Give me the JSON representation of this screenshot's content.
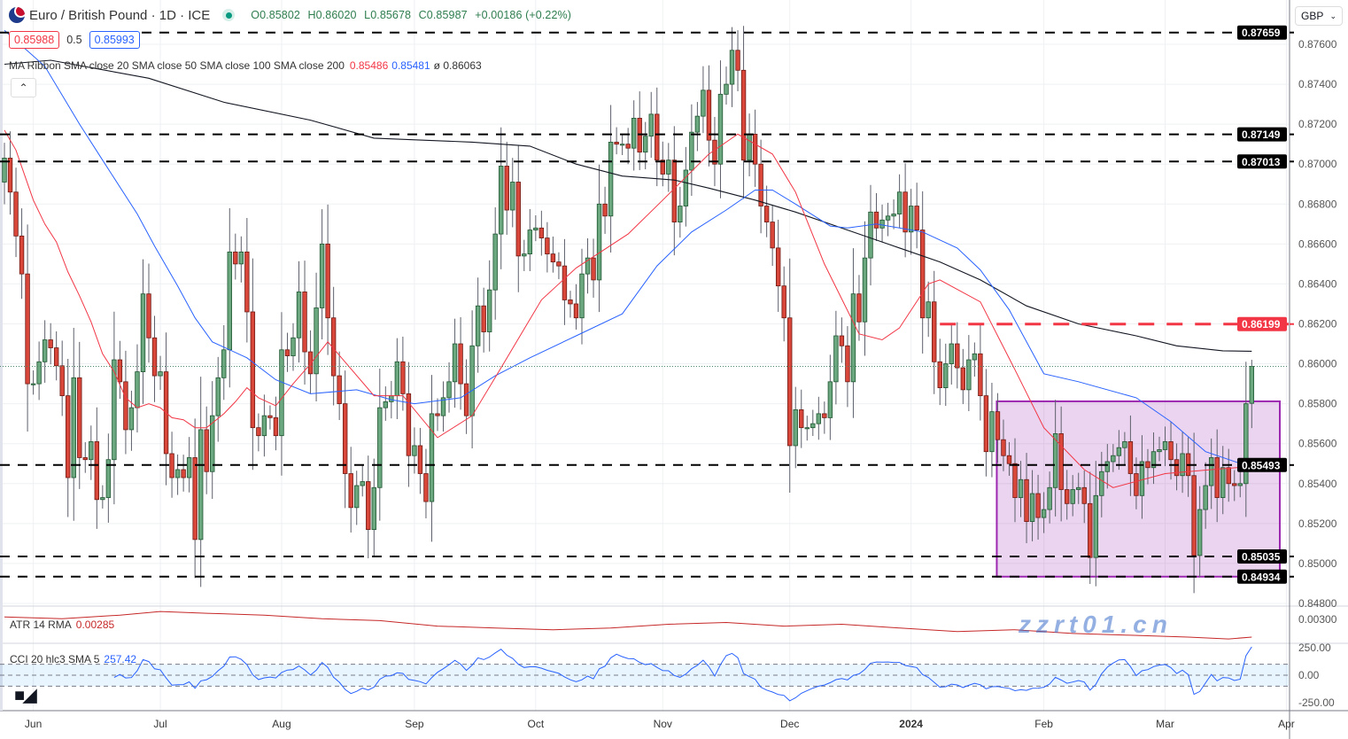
{
  "header": {
    "title": "Euro / British Pound · 1D · ICE",
    "open": "O0.85802",
    "high": "H0.86020",
    "low": "L0.85678",
    "close": "C0.85987",
    "change": "+0.00186 (+0.22%)",
    "bid": "0.85988",
    "spread": "0.5",
    "ask": "0.85993",
    "collapse_icon": "chevron-up-icon"
  },
  "ma_ribbon": {
    "label": "MA Ribbon SMA close 20 SMA close 50 SMA close 100 SMA close 200",
    "v20": "0.85486",
    "v50": "0.85481",
    "v200": "ø 0.86063"
  },
  "atr": {
    "label": "ATR 14 RMA",
    "value": "0.00285"
  },
  "cci": {
    "label": "CCI 20 hlc3 SMA 5",
    "value": "257.42"
  },
  "currency_select": {
    "value": "GBP"
  },
  "logo_text": "TV",
  "watermark": "zzrt01.cn",
  "colors": {
    "up": "#6ba77f",
    "up_border": "#1e5631",
    "down": "#d9473b",
    "down_border": "#6e1a14",
    "sma20": "#f23645",
    "sma50": "#2962ff",
    "sma200": "#131722",
    "box": "#9c27b0",
    "resistance": "#f23645",
    "cci": "#2962ff",
    "atr": "#c62828"
  },
  "chart_data": {
    "type": "candlestick",
    "symbol": "EUR/GBP",
    "ylim": [
      0.848,
      0.8775
    ],
    "y_ticks": [
      "0.87600",
      "0.87400",
      "0.87200",
      "0.87000",
      "0.86800",
      "0.86600",
      "0.86400",
      "0.86200",
      "0.86000",
      "0.85800",
      "0.85600",
      "0.85400",
      "0.85200",
      "0.85000",
      "0.84800"
    ],
    "x_labels": [
      {
        "label": "Jun",
        "index": 5
      },
      {
        "label": "Jul",
        "index": 27
      },
      {
        "label": "Aug",
        "index": 48
      },
      {
        "label": "Sep",
        "index": 71
      },
      {
        "label": "Oct",
        "index": 92
      },
      {
        "label": "Nov",
        "index": 114
      },
      {
        "label": "Dec",
        "index": 136
      },
      {
        "label": "2024",
        "index": 157,
        "bold": true
      },
      {
        "label": "Feb",
        "index": 180
      },
      {
        "label": "Mar",
        "index": 201
      },
      {
        "label": "Apr",
        "index": 222
      }
    ],
    "first_open": 0.8691,
    "last_candle": {
      "open": 0.85802,
      "high": 0.8602,
      "low": 0.85678,
      "close": 0.85987
    },
    "closes": [
      0.8703,
      0.8686,
      0.8664,
      0.8645,
      0.859,
      0.859,
      0.8601,
      0.8612,
      0.8608,
      0.8599,
      0.8584,
      0.8543,
      0.8593,
      0.8553,
      0.8552,
      0.8561,
      0.8532,
      0.8533,
      0.8552,
      0.8602,
      0.8591,
      0.8567,
      0.8578,
      0.8596,
      0.8635,
      0.8613,
      0.8594,
      0.8596,
      0.8555,
      0.8543,
      0.8547,
      0.8543,
      0.8553,
      0.8512,
      0.8567,
      0.8546,
      0.8574,
      0.8593,
      0.8607,
      0.8656,
      0.865,
      0.8656,
      0.8626,
      0.8568,
      0.8564,
      0.8574,
      0.8573,
      0.8564,
      0.8607,
      0.8604,
      0.8613,
      0.8636,
      0.8606,
      0.8595,
      0.8628,
      0.866,
      0.8623,
      0.8594,
      0.858,
      0.8545,
      0.8528,
      0.8539,
      0.8541,
      0.8517,
      0.8538,
      0.8578,
      0.8581,
      0.8584,
      0.8601,
      0.8585,
      0.8554,
      0.8559,
      0.8545,
      0.8531,
      0.8575,
      0.8574,
      0.8583,
      0.8591,
      0.861,
      0.859,
      0.8574,
      0.8609,
      0.8629,
      0.8616,
      0.8637,
      0.8665,
      0.8699,
      0.8677,
      0.8691,
      0.8654,
      0.8655,
      0.8667,
      0.8668,
      0.8663,
      0.8655,
      0.8651,
      0.8649,
      0.8632,
      0.863,
      0.8623,
      0.8645,
      0.8653,
      0.8642,
      0.868,
      0.8674,
      0.8711,
      0.871,
      0.871,
      0.8708,
      0.8723,
      0.8706,
      0.8714,
      0.8725,
      0.8702,
      0.8695,
      0.8702,
      0.8671,
      0.8679,
      0.8697,
      0.8716,
      0.8724,
      0.8737,
      0.8712,
      0.87,
      0.8735,
      0.874,
      0.8757,
      0.8747,
      0.8702,
      0.8715,
      0.87,
      0.8679,
      0.8671,
      0.8658,
      0.8639,
      0.8623,
      0.8559,
      0.8577,
      0.8568,
      0.8568,
      0.857,
      0.8575,
      0.8573,
      0.8591,
      0.8614,
      0.8609,
      0.8591,
      0.8635,
      0.8621,
      0.8653,
      0.8676,
      0.8668,
      0.8672,
      0.8674,
      0.8675,
      0.8686,
      0.8666,
      0.8679,
      0.8667,
      0.8623,
      0.8631,
      0.8601,
      0.8588,
      0.86,
      0.861,
      0.8598,
      0.8587,
      0.8602,
      0.8605,
      0.8584,
      0.8556,
      0.8576,
      0.8562,
      0.8554,
      0.855,
      0.8533,
      0.8542,
      0.8521,
      0.8535,
      0.8523,
      0.8527,
      0.8538,
      0.8565,
      0.8537,
      0.853,
      0.8537,
      0.8538,
      0.853,
      0.8503,
      0.8534,
      0.8546,
      0.8551,
      0.8554,
      0.8558,
      0.8561,
      0.8545,
      0.8534,
      0.8551,
      0.8548,
      0.8556,
      0.8557,
      0.8561,
      0.8552,
      0.8544,
      0.8555,
      0.8544,
      0.8504,
      0.8527,
      0.8539,
      0.8553,
      0.8533,
      0.8548,
      0.854,
      0.8539,
      0.854,
      0.858,
      0.85987
    ],
    "sma20": [
      [
        0,
        0.8717
      ],
      [
        2,
        0.8707
      ],
      [
        5,
        0.8682
      ],
      [
        7,
        0.867
      ],
      [
        9,
        0.8661
      ],
      [
        11,
        0.8646
      ],
      [
        13,
        0.8634
      ],
      [
        15,
        0.8621
      ],
      [
        17,
        0.8605
      ],
      [
        19,
        0.8596
      ],
      [
        21,
        0.8583
      ],
      [
        23,
        0.8578
      ],
      [
        25,
        0.858
      ],
      [
        27,
        0.8578
      ],
      [
        29,
        0.8573
      ],
      [
        31,
        0.8572
      ],
      [
        33,
        0.8568
      ],
      [
        35,
        0.8568
      ],
      [
        38,
        0.8575
      ],
      [
        40,
        0.8581
      ],
      [
        42,
        0.8588
      ],
      [
        44,
        0.8583
      ],
      [
        47,
        0.8579
      ],
      [
        50,
        0.859
      ],
      [
        53,
        0.86
      ],
      [
        56,
        0.8611
      ],
      [
        64,
        0.8584
      ],
      [
        69,
        0.8584
      ],
      [
        75,
        0.8563
      ],
      [
        81,
        0.8574
      ],
      [
        86,
        0.8598
      ],
      [
        93,
        0.8632
      ],
      [
        99,
        0.8648
      ],
      [
        108,
        0.8665
      ],
      [
        114,
        0.8682
      ],
      [
        122,
        0.8705
      ],
      [
        127,
        0.8715
      ],
      [
        133,
        0.8705
      ],
      [
        137,
        0.8686
      ],
      [
        142,
        0.865
      ],
      [
        148,
        0.8615
      ],
      [
        152,
        0.8612
      ],
      [
        155,
        0.8618
      ],
      [
        160,
        0.864
      ],
      [
        162,
        0.8642
      ],
      [
        169,
        0.8631
      ],
      [
        175,
        0.8597
      ],
      [
        180,
        0.8568
      ],
      [
        187,
        0.8547
      ],
      [
        192,
        0.8538
      ],
      [
        201,
        0.8545
      ],
      [
        209,
        0.8547
      ],
      [
        216,
        0.85486
      ]
    ],
    "sma50": [
      [
        0,
        0.8767
      ],
      [
        7,
        0.8749
      ],
      [
        13,
        0.872
      ],
      [
        17,
        0.8702
      ],
      [
        23,
        0.8675
      ],
      [
        26,
        0.8659
      ],
      [
        30,
        0.8639
      ],
      [
        33,
        0.8623
      ],
      [
        36,
        0.8611
      ],
      [
        42,
        0.8603
      ],
      [
        47,
        0.8592
      ],
      [
        53,
        0.8585
      ],
      [
        61,
        0.8587
      ],
      [
        67,
        0.8582
      ],
      [
        71,
        0.858
      ],
      [
        79,
        0.8583
      ],
      [
        85,
        0.8594
      ],
      [
        91,
        0.8603
      ],
      [
        99,
        0.8614
      ],
      [
        107,
        0.8625
      ],
      [
        113,
        0.8649
      ],
      [
        119,
        0.8666
      ],
      [
        125,
        0.8677
      ],
      [
        130,
        0.8687
      ],
      [
        133,
        0.8687
      ],
      [
        137,
        0.868
      ],
      [
        143,
        0.8669
      ],
      [
        146,
        0.8668
      ],
      [
        151,
        0.867
      ],
      [
        159,
        0.8666
      ],
      [
        165,
        0.8658
      ],
      [
        169,
        0.8647
      ],
      [
        174,
        0.8627
      ],
      [
        180,
        0.8595
      ],
      [
        186,
        0.8591
      ],
      [
        196,
        0.8583
      ],
      [
        202,
        0.8571
      ],
      [
        208,
        0.8556
      ],
      [
        216,
        0.85481
      ]
    ],
    "sma200": [
      [
        0,
        0.875
      ],
      [
        8,
        0.8752
      ],
      [
        25,
        0.8743
      ],
      [
        38,
        0.8731
      ],
      [
        53,
        0.8722
      ],
      [
        64,
        0.8713
      ],
      [
        81,
        0.8711
      ],
      [
        91,
        0.8709
      ],
      [
        99,
        0.87
      ],
      [
        107,
        0.8694
      ],
      [
        116,
        0.8692
      ],
      [
        122,
        0.8688
      ],
      [
        130,
        0.8682
      ],
      [
        137,
        0.8676
      ],
      [
        146,
        0.8667
      ],
      [
        153,
        0.866
      ],
      [
        162,
        0.8651
      ],
      [
        169,
        0.8642
      ],
      [
        177,
        0.8629
      ],
      [
        186,
        0.862
      ],
      [
        196,
        0.8614
      ],
      [
        203,
        0.8609
      ],
      [
        211,
        0.86065
      ],
      [
        216,
        0.86063
      ]
    ],
    "levels": [
      {
        "price": 0.87659,
        "label": "0.87659",
        "style": "dashed-black"
      },
      {
        "price": 0.87149,
        "label": "0.87149",
        "style": "dashed-black"
      },
      {
        "price": 0.87013,
        "label": "0.87013",
        "style": "dashed-black"
      },
      {
        "price": 0.85493,
        "label": "0.85493",
        "style": "dashed-black"
      },
      {
        "price": 0.85035,
        "label": "0.85035",
        "style": "dashed-black"
      },
      {
        "price": 0.84934,
        "label": "0.84934",
        "style": "dashed-black"
      },
      {
        "price": 0.86199,
        "label": "0.86199",
        "style": "dashed-red",
        "from_index": 162
      }
    ],
    "range_box": {
      "from_index": 172,
      "top": 0.85812,
      "bottom": 0.84934
    },
    "atr_series": [
      [
        0,
        0.00296
      ],
      [
        10,
        0.00295
      ],
      [
        20,
        0.00297
      ],
      [
        27,
        0.00299
      ],
      [
        35,
        0.00298
      ],
      [
        45,
        0.00297
      ],
      [
        55,
        0.00295
      ],
      [
        65,
        0.00294
      ],
      [
        75,
        0.00291
      ],
      [
        85,
        0.0029
      ],
      [
        95,
        0.00289
      ],
      [
        105,
        0.0029
      ],
      [
        115,
        0.00292
      ],
      [
        125,
        0.00293
      ],
      [
        135,
        0.00291
      ],
      [
        145,
        0.00292
      ],
      [
        155,
        0.0029
      ],
      [
        165,
        0.00288
      ],
      [
        175,
        0.00289
      ],
      [
        185,
        0.00287
      ],
      [
        195,
        0.00286
      ],
      [
        205,
        0.00285
      ],
      [
        212,
        0.00284
      ],
      [
        216,
        0.00285
      ]
    ],
    "atr_ticks": [
      "0.00300"
    ],
    "cci_ticks": [
      "250.00",
      "0.00",
      "-250.00"
    ],
    "cci_bands": [
      100,
      -100
    ]
  }
}
